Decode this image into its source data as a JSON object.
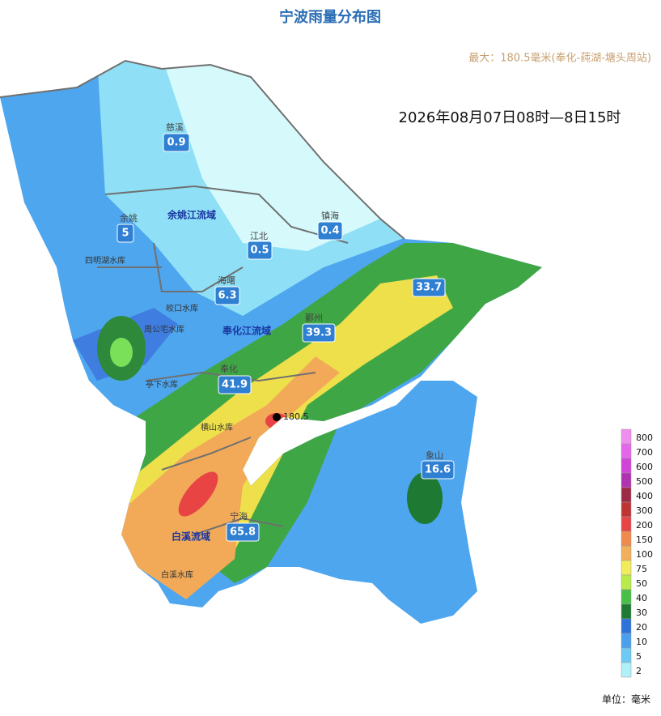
{
  "header": {
    "title": "宁波雨量分布图",
    "max_note": "最大：180.5毫米(奉化-莼湖-塘头周站)",
    "period": "2026年08月07日08时—8日15时"
  },
  "stations": [
    {
      "name": "慈溪",
      "value": 0.9
    },
    {
      "name": "余姚",
      "value": 5
    },
    {
      "name": "镇海",
      "value": 0.4
    },
    {
      "name": "江北",
      "value": 0.5
    },
    {
      "name": "海曙",
      "value": 6.3
    },
    {
      "value": 33.7
    },
    {
      "name": "鄞州",
      "value": 39.3
    },
    {
      "name": "奉化",
      "value": 41.9
    },
    {
      "name": "宁海",
      "value": 65.8
    },
    {
      "name": "象山",
      "value": 16.6
    }
  ],
  "max_point": {
    "value": 180.5
  },
  "basins": [
    "余姚江流域",
    "奉化江流域",
    "白溪流域"
  ],
  "reservoirs": [
    "四明湖水库",
    "皎口水库",
    "周公宅水库",
    "亭下水库",
    "横山水库",
    "白溪水库"
  ],
  "legend": {
    "unit": "单位：毫米",
    "items": [
      {
        "value": 800,
        "color": "#f08ef0"
      },
      {
        "value": 700,
        "color": "#e466ea"
      },
      {
        "value": 600,
        "color": "#d044d8"
      },
      {
        "value": 500,
        "color": "#b032b0"
      },
      {
        "value": 400,
        "color": "#9c2a44"
      },
      {
        "value": 300,
        "color": "#c03434"
      },
      {
        "value": 200,
        "color": "#e84444"
      },
      {
        "value": 150,
        "color": "#f08a4a"
      },
      {
        "value": 100,
        "color": "#f2b05a"
      },
      {
        "value": 75,
        "color": "#f2ec5a"
      },
      {
        "value": 50,
        "color": "#b8ea4a"
      },
      {
        "value": 40,
        "color": "#48c048"
      },
      {
        "value": 30,
        "color": "#1e7a32"
      },
      {
        "value": 20,
        "color": "#2c72d8"
      },
      {
        "value": 10,
        "color": "#4aa0ee"
      },
      {
        "value": 5,
        "color": "#6ccaf4"
      },
      {
        "value": 2,
        "color": "#b0f0f8"
      }
    ]
  }
}
